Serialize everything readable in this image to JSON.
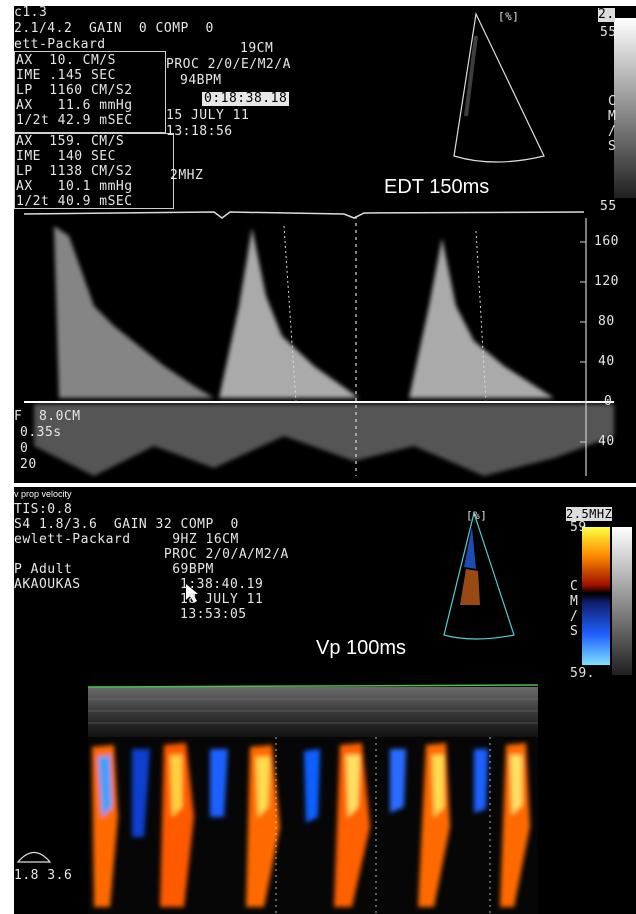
{
  "top": {
    "header_lines": [
      "c1.3",
      "2.1/4.2  GAIN  0 COMP  0",
      "ett-Packard"
    ],
    "meas": [
      "AX  10. CM/S",
      "IME .145 SEC",
      "LP  1160 CM/S2",
      "AX   11.6 mmHg",
      "1/2t 42.9 mSEC",
      "AX  159. CM/S",
      "IME  140 SEC",
      "LP  1138 CM/S2",
      "AX   10.1 mmHg",
      "1/2t 40.9 mSEC"
    ],
    "depth": "19CM",
    "proc": "PROC 2/0/E/M2/A",
    "bpm": "94BPM",
    "time_code": "0:18:38.18",
    "date": "15 JULY 11",
    "clock": "13:18:56",
    "freq": "2MHZ",
    "probe_label": "[%]",
    "scale_top_label": "2.",
    "scale_top_value": "55",
    "scale_unit": "C\nM\n/\nS",
    "scale_bottom_value": "55",
    "annotation": "EDT 150ms",
    "velocity_ticks": [
      "160",
      "120",
      "80",
      "40",
      "0",
      "40"
    ],
    "left_labels": [
      "F  8.0CM",
      "0.35s",
      "0",
      "20"
    ]
  },
  "bottom": {
    "caption": "v prop velocity",
    "header_lines": [
      "TIS:0.8",
      "S4 1.8/3.6  GAIN 32 COMP  0",
      "ewlett-Packard     9HZ 16CM",
      "                  PROC 2/0/A/M2/A",
      "P Adult            69BPM",
      "AKAOUKAS"
    ],
    "time_code": "1:38:40.19",
    "date": "18 JULY 11",
    "clock": "13:53:05",
    "probe_label": "[%]",
    "freq_label": "2.5MHZ",
    "scale_top_value": "59.",
    "scale_unit": "C\nM\n/\nS",
    "scale_bottom_value": "59.",
    "annotation": "Vp 100ms",
    "probe_freq": "1.8 3.6"
  }
}
